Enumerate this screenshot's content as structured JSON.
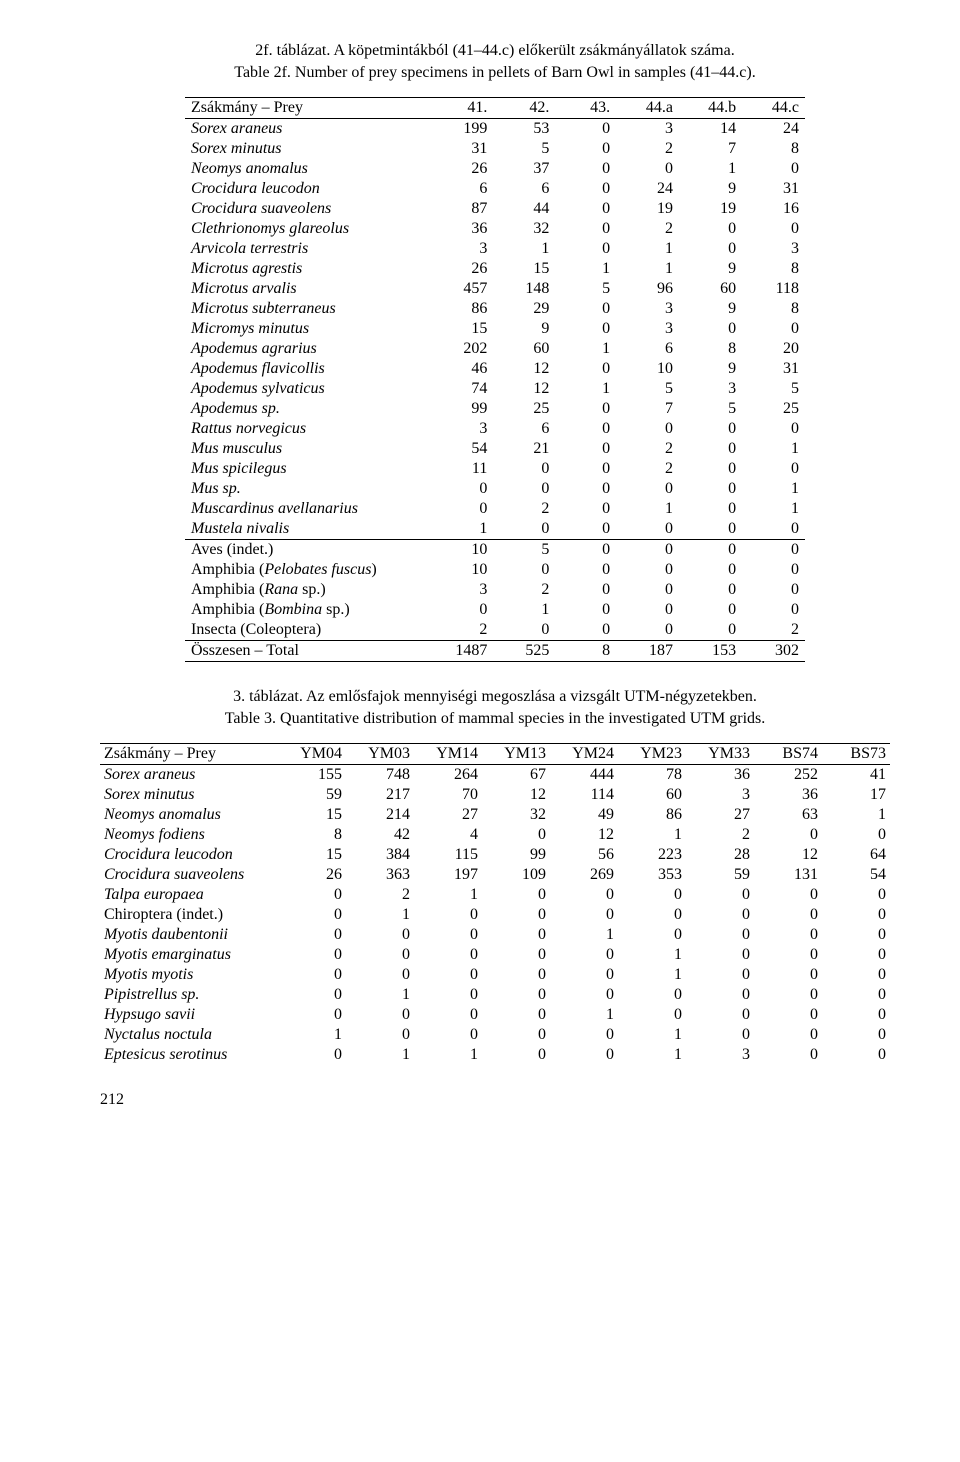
{
  "t1": {
    "caption_line1": "2f. táblázat. A köpetmintákból (41–44.c) előkerült zsákmányállatok száma.",
    "caption_line2": "Table 2f. Number of prey specimens in pellets of Barn Owl in samples (41–44.c).",
    "head_label": "Zsákmány – Prey",
    "cols": [
      "41.",
      "42.",
      "43.",
      "44.a",
      "44.b",
      "44.c"
    ],
    "rowsA": [
      {
        "n": "Sorex araneus",
        "i": true,
        "v": [
          "199",
          "53",
          "0",
          "3",
          "14",
          "24"
        ]
      },
      {
        "n": "Sorex minutus",
        "i": true,
        "v": [
          "31",
          "5",
          "0",
          "2",
          "7",
          "8"
        ]
      },
      {
        "n": "Neomys anomalus",
        "i": true,
        "v": [
          "26",
          "37",
          "0",
          "0",
          "1",
          "0"
        ]
      },
      {
        "n": "Crocidura leucodon",
        "i": true,
        "v": [
          "6",
          "6",
          "0",
          "24",
          "9",
          "31"
        ]
      },
      {
        "n": "Crocidura suaveolens",
        "i": true,
        "v": [
          "87",
          "44",
          "0",
          "19",
          "19",
          "16"
        ]
      },
      {
        "n": "Clethrionomys glareolus",
        "i": true,
        "v": [
          "36",
          "32",
          "0",
          "2",
          "0",
          "0"
        ]
      },
      {
        "n": "Arvicola terrestris",
        "i": true,
        "v": [
          "3",
          "1",
          "0",
          "1",
          "0",
          "3"
        ]
      },
      {
        "n": "Microtus agrestis",
        "i": true,
        "v": [
          "26",
          "15",
          "1",
          "1",
          "9",
          "8"
        ]
      },
      {
        "n": "Microtus arvalis",
        "i": true,
        "v": [
          "457",
          "148",
          "5",
          "96",
          "60",
          "118"
        ]
      },
      {
        "n": "Microtus subterraneus",
        "i": true,
        "v": [
          "86",
          "29",
          "0",
          "3",
          "9",
          "8"
        ]
      },
      {
        "n": "Micromys minutus",
        "i": true,
        "v": [
          "15",
          "9",
          "0",
          "3",
          "0",
          "0"
        ]
      },
      {
        "n": "Apodemus agrarius",
        "i": true,
        "v": [
          "202",
          "60",
          "1",
          "6",
          "8",
          "20"
        ]
      },
      {
        "n": "Apodemus flavicollis",
        "i": true,
        "v": [
          "46",
          "12",
          "0",
          "10",
          "9",
          "31"
        ]
      },
      {
        "n": "Apodemus sylvaticus",
        "i": true,
        "v": [
          "74",
          "12",
          "1",
          "5",
          "3",
          "5"
        ]
      },
      {
        "n": "Apodemus sp.",
        "i": true,
        "v": [
          "99",
          "25",
          "0",
          "7",
          "5",
          "25"
        ]
      },
      {
        "n": "Rattus norvegicus",
        "i": true,
        "v": [
          "3",
          "6",
          "0",
          "0",
          "0",
          "0"
        ]
      },
      {
        "n": "Mus musculus",
        "i": true,
        "v": [
          "54",
          "21",
          "0",
          "2",
          "0",
          "1"
        ]
      },
      {
        "n": "Mus spicilegus",
        "i": true,
        "v": [
          "11",
          "0",
          "0",
          "2",
          "0",
          "0"
        ]
      },
      {
        "n": "Mus sp.",
        "i": true,
        "v": [
          "0",
          "0",
          "0",
          "0",
          "0",
          "1"
        ]
      },
      {
        "n": "Muscardinus avellanarius",
        "i": true,
        "v": [
          "0",
          "2",
          "0",
          "1",
          "0",
          "1"
        ]
      },
      {
        "n": "Mustela nivalis",
        "i": true,
        "v": [
          "1",
          "0",
          "0",
          "0",
          "0",
          "0"
        ]
      }
    ],
    "rowsB": [
      {
        "n": "Aves (indet.)",
        "v": [
          "10",
          "5",
          "0",
          "0",
          "0",
          "0"
        ]
      },
      {
        "n": "Amphibia (Pelobates fuscus)",
        "html": "Amphibia (<span class=\"ital\">Pelobates fuscus</span>)",
        "v": [
          "10",
          "0",
          "0",
          "0",
          "0",
          "0"
        ]
      },
      {
        "n": "Amphibia (Rana sp.)",
        "html": "Amphibia (<span class=\"ital\">Rana</span> sp.)",
        "v": [
          "3",
          "2",
          "0",
          "0",
          "0",
          "0"
        ]
      },
      {
        "n": "Amphibia (Bombina sp.)",
        "html": "Amphibia (<span class=\"ital\">Bombina</span> sp.)",
        "v": [
          "0",
          "1",
          "0",
          "0",
          "0",
          "0"
        ]
      },
      {
        "n": "Insecta (Coleoptera)",
        "v": [
          "2",
          "0",
          "0",
          "0",
          "0",
          "2"
        ]
      }
    ],
    "total": {
      "n": "Összesen – Total",
      "v": [
        "1487",
        "525",
        "8",
        "187",
        "153",
        "302"
      ]
    }
  },
  "t2": {
    "caption_line1": "3. táblázat. Az emlősfajok mennyiségi megoszlása a vizsgált UTM-négyzetekben.",
    "caption_line2": "Table 3. Quantitative distribution of mammal species in the investigated UTM grids.",
    "head_label": "Zsákmány – Prey",
    "cols": [
      "YM04",
      "YM03",
      "YM14",
      "YM13",
      "YM24",
      "YM23",
      "YM33",
      "BS74",
      "BS73"
    ],
    "rows": [
      {
        "n": "Sorex araneus",
        "i": true,
        "v": [
          "155",
          "748",
          "264",
          "67",
          "444",
          "78",
          "36",
          "252",
          "41"
        ]
      },
      {
        "n": "Sorex minutus",
        "i": true,
        "v": [
          "59",
          "217",
          "70",
          "12",
          "114",
          "60",
          "3",
          "36",
          "17"
        ]
      },
      {
        "n": "Neomys anomalus",
        "i": true,
        "v": [
          "15",
          "214",
          "27",
          "32",
          "49",
          "86",
          "27",
          "63",
          "1"
        ]
      },
      {
        "n": "Neomys fodiens",
        "i": true,
        "v": [
          "8",
          "42",
          "4",
          "0",
          "12",
          "1",
          "2",
          "0",
          "0"
        ]
      },
      {
        "n": "Crocidura leucodon",
        "i": true,
        "v": [
          "15",
          "384",
          "115",
          "99",
          "56",
          "223",
          "28",
          "12",
          "64"
        ]
      },
      {
        "n": "Crocidura suaveolens",
        "i": true,
        "v": [
          "26",
          "363",
          "197",
          "109",
          "269",
          "353",
          "59",
          "131",
          "54"
        ]
      },
      {
        "n": "Talpa europaea",
        "i": true,
        "v": [
          "0",
          "2",
          "1",
          "0",
          "0",
          "0",
          "0",
          "0",
          "0"
        ]
      },
      {
        "n": "Chiroptera (indet.)",
        "i": false,
        "v": [
          "0",
          "1",
          "0",
          "0",
          "0",
          "0",
          "0",
          "0",
          "0"
        ]
      },
      {
        "n": "Myotis daubentonii",
        "i": true,
        "v": [
          "0",
          "0",
          "0",
          "0",
          "1",
          "0",
          "0",
          "0",
          "0"
        ]
      },
      {
        "n": "Myotis emarginatus",
        "i": true,
        "v": [
          "0",
          "0",
          "0",
          "0",
          "0",
          "1",
          "0",
          "0",
          "0"
        ]
      },
      {
        "n": "Myotis myotis",
        "i": true,
        "v": [
          "0",
          "0",
          "0",
          "0",
          "0",
          "1",
          "0",
          "0",
          "0"
        ]
      },
      {
        "n": "Pipistrellus sp.",
        "i": true,
        "v": [
          "0",
          "1",
          "0",
          "0",
          "0",
          "0",
          "0",
          "0",
          "0"
        ]
      },
      {
        "n": "Hypsugo savii",
        "i": true,
        "v": [
          "0",
          "0",
          "0",
          "0",
          "1",
          "0",
          "0",
          "0",
          "0"
        ]
      },
      {
        "n": "Nyctalus noctula",
        "i": true,
        "v": [
          "1",
          "0",
          "0",
          "0",
          "0",
          "1",
          "0",
          "0",
          "0"
        ]
      },
      {
        "n": "Eptesicus serotinus",
        "i": true,
        "v": [
          "0",
          "1",
          "1",
          "0",
          "0",
          "1",
          "3",
          "0",
          "0"
        ]
      }
    ]
  },
  "page_number": "212"
}
